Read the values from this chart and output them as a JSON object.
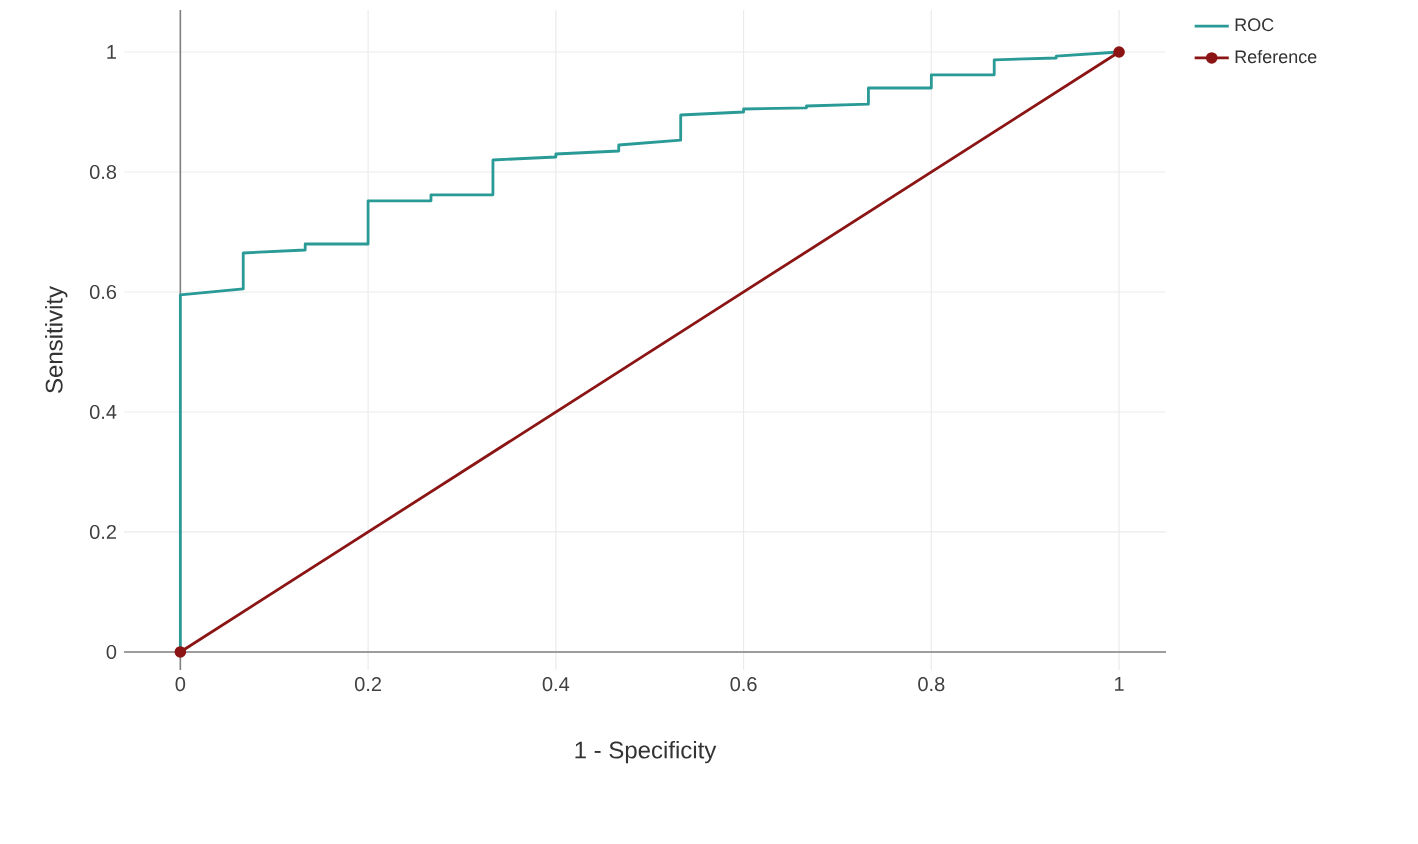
{
  "chart_data": {
    "type": "line",
    "xlabel": "1 - Specificity",
    "ylabel": "Sensitivity",
    "xlim": [
      -0.06,
      1.05
    ],
    "ylim": [
      -0.03,
      1.07
    ],
    "xticks": [
      0,
      0.2,
      0.4,
      0.6,
      0.8,
      1
    ],
    "yticks": [
      0,
      0.2,
      0.4,
      0.6,
      0.8,
      1
    ],
    "grid": true,
    "legend": "top right",
    "series": [
      {
        "name": "ROC",
        "color": "#2a9a96",
        "marker": "none",
        "x": [
          0,
          0,
          0.067,
          0.067,
          0.133,
          0.133,
          0.2,
          0.2,
          0.267,
          0.267,
          0.333,
          0.333,
          0.4,
          0.4,
          0.467,
          0.467,
          0.533,
          0.533,
          0.6,
          0.6,
          0.667,
          0.667,
          0.733,
          0.733,
          0.8,
          0.8,
          0.867,
          0.867,
          0.933,
          0.933,
          1
        ],
        "values": [
          0,
          0.595,
          0.605,
          0.665,
          0.67,
          0.68,
          0.68,
          0.752,
          0.752,
          0.762,
          0.762,
          0.82,
          0.825,
          0.83,
          0.835,
          0.845,
          0.853,
          0.895,
          0.9,
          0.905,
          0.907,
          0.91,
          0.913,
          0.94,
          0.94,
          0.962,
          0.962,
          0.987,
          0.99,
          0.993,
          1
        ]
      },
      {
        "name": "Reference",
        "color": "#8b1414",
        "marker": "circle",
        "x": [
          0,
          1
        ],
        "values": [
          0,
          1
        ]
      }
    ]
  }
}
